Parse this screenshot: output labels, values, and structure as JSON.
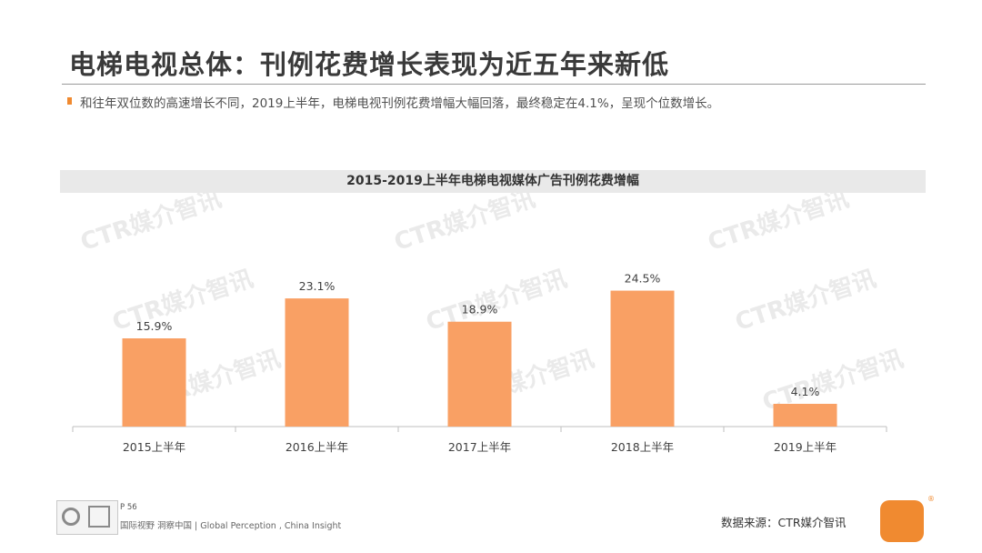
{
  "title": "电梯电视总体：刊例花费增长表现为近五年来新低",
  "subtitle": "和往年双位数的高速增长不同，2019上半年，电梯电视刊例花费增幅大幅回落，最终稳定在4.1%，呈现个位数增长。",
  "chart_data": {
    "type": "bar",
    "title": "2015-2019上半年电梯电视媒体广告刊例花费增幅",
    "categories": [
      "2015上半年",
      "2016上半年",
      "2017上半年",
      "2018上半年",
      "2019上半年"
    ],
    "values": [
      15.9,
      23.1,
      18.9,
      24.5,
      4.1
    ],
    "data_labels": [
      "15.9%",
      "23.1%",
      "18.9%",
      "24.5%",
      "4.1%"
    ],
    "unit": "%",
    "ylim": [
      0,
      30
    ],
    "bar_color": "#f9a064",
    "grid": false,
    "legend": "none"
  },
  "watermark": "CTR媒介智讯",
  "footer": {
    "page": "P 56",
    "tagline": "国际视野  洞察中国 |  Global Perception , China Insight",
    "source": "数据来源：CTR媒介智讯"
  },
  "colors": {
    "accent": "#f08a30",
    "bar": "#f9a064"
  }
}
